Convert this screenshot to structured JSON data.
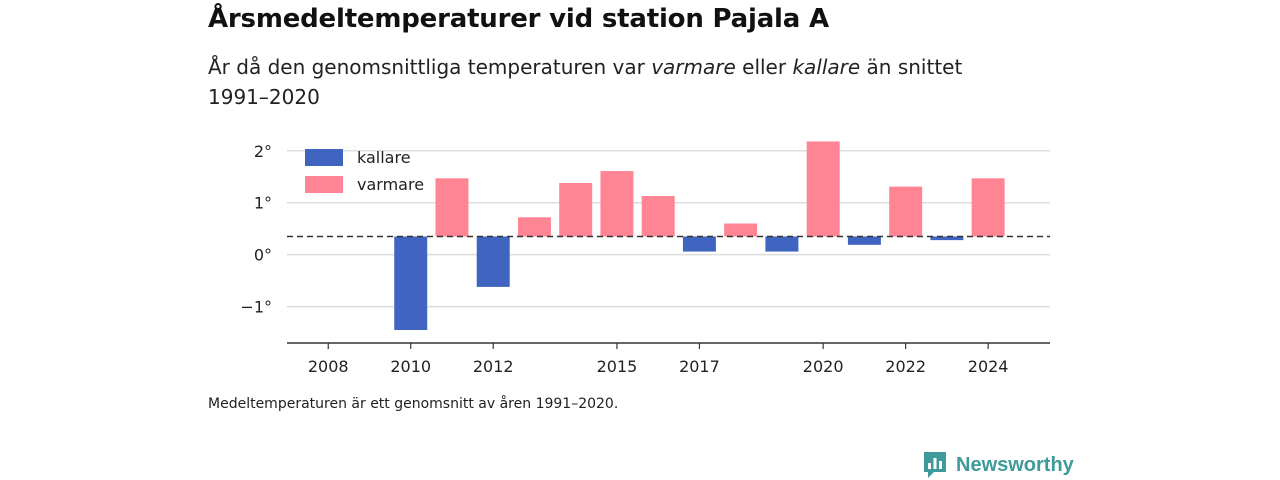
{
  "title": "Årsmedeltemperaturer vid station Pajala A",
  "subtitle": {
    "part1": "År då den genomsnittliga temperaturen var ",
    "warm": "varmare",
    "part2": " eller ",
    "cold": "kallare",
    "part3": " än snittet 1991–2020"
  },
  "caption": "Medeltemperaturen är ett genomsnitt av åren 1991–2020.",
  "brand": "Newsworthy",
  "colors": {
    "kallare": "#4065c0",
    "varmare": "#ff8595",
    "grid": "#dddddd",
    "baseline": "#333333",
    "brand": "#3e9a9b"
  },
  "chart_data": {
    "type": "bar",
    "title": "",
    "xlabel": "",
    "ylabel": "",
    "baseline_value": 0.35,
    "ylim": [
      -1.7,
      2.4
    ],
    "xlim": [
      2007,
      2025.5
    ],
    "y_ticks": [
      {
        "value": 2,
        "label": "2°"
      },
      {
        "value": 1,
        "label": "1°"
      },
      {
        "value": 0,
        "label": "0°"
      },
      {
        "value": -1,
        "label": "−1°"
      }
    ],
    "x_ticks": [
      {
        "value": 2008,
        "label": "2008"
      },
      {
        "value": 2010,
        "label": "2010"
      },
      {
        "value": 2012,
        "label": "2012"
      },
      {
        "value": 2015,
        "label": "2015"
      },
      {
        "value": 2017,
        "label": "2017"
      },
      {
        "value": 2020,
        "label": "2020"
      },
      {
        "value": 2022,
        "label": "2022"
      },
      {
        "value": 2024,
        "label": "2024"
      }
    ],
    "legend": [
      {
        "key": "kallare",
        "label": "kallare"
      },
      {
        "key": "varmare",
        "label": "varmare"
      }
    ],
    "legend_position": "top-left",
    "grid": true,
    "bars": [
      {
        "year": 2010,
        "value": -1.45,
        "category": "kallare"
      },
      {
        "year": 2011,
        "value": 1.47,
        "category": "varmare"
      },
      {
        "year": 2012,
        "value": -0.62,
        "category": "kallare"
      },
      {
        "year": 2013,
        "value": 0.72,
        "category": "varmare"
      },
      {
        "year": 2014,
        "value": 1.38,
        "category": "varmare"
      },
      {
        "year": 2015,
        "value": 1.61,
        "category": "varmare"
      },
      {
        "year": 2016,
        "value": 1.13,
        "category": "varmare"
      },
      {
        "year": 2017,
        "value": 0.06,
        "category": "kallare"
      },
      {
        "year": 2018,
        "value": 0.6,
        "category": "varmare"
      },
      {
        "year": 2019,
        "value": 0.06,
        "category": "kallare"
      },
      {
        "year": 2020,
        "value": 2.18,
        "category": "varmare"
      },
      {
        "year": 2021,
        "value": 0.19,
        "category": "kallare"
      },
      {
        "year": 2022,
        "value": 1.31,
        "category": "varmare"
      },
      {
        "year": 2023,
        "value": 0.28,
        "category": "kallare"
      },
      {
        "year": 2024,
        "value": 1.47,
        "category": "varmare"
      }
    ]
  }
}
